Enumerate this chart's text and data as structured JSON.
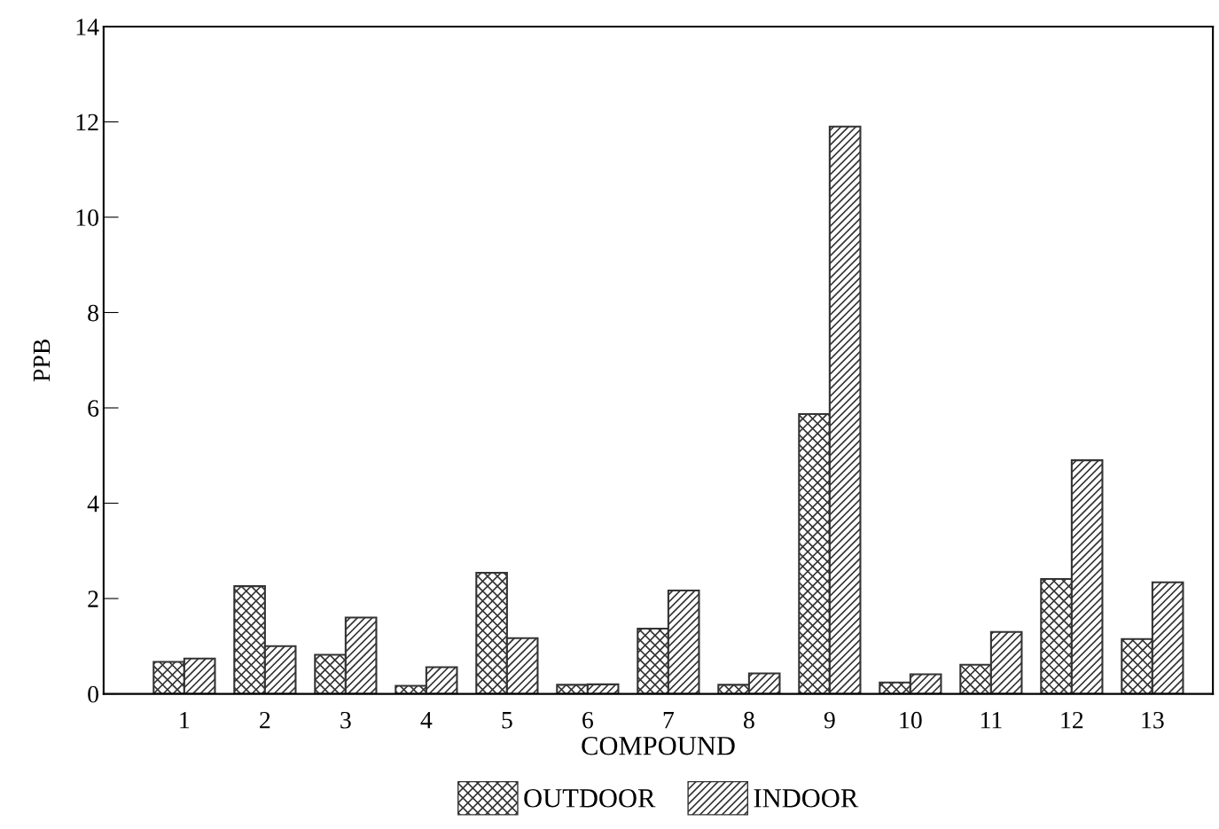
{
  "chart_data": {
    "type": "bar",
    "xlabel": "COMPOUND",
    "ylabel": "PPB",
    "categories": [
      "1",
      "2",
      "3",
      "4",
      "5",
      "6",
      "7",
      "8",
      "9",
      "10",
      "11",
      "12",
      "13"
    ],
    "series": [
      {
        "name": "OUTDOOR",
        "color": "#333333",
        "values": [
          0.67,
          2.26,
          0.82,
          0.17,
          2.54,
          0.19,
          1.37,
          0.19,
          5.87,
          0.24,
          0.61,
          2.41,
          1.15
        ]
      },
      {
        "name": "INDOOR",
        "color": "#333333",
        "values": [
          0.74,
          1.0,
          1.6,
          0.56,
          1.17,
          0.2,
          2.17,
          0.43,
          11.9,
          0.41,
          1.3,
          4.9,
          2.34
        ]
      }
    ],
    "ylim": [
      0,
      14
    ],
    "yticks": [
      0,
      2,
      4,
      6,
      8,
      10,
      12,
      14
    ],
    "grid": false,
    "legend": "bottom"
  }
}
